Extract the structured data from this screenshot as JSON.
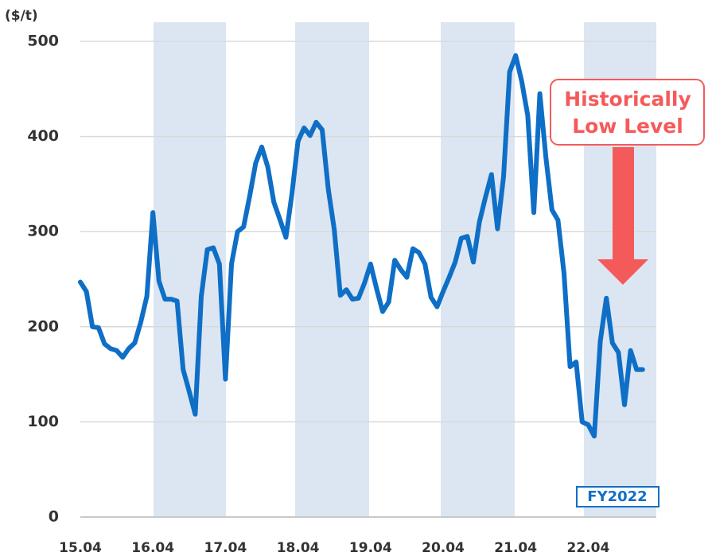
{
  "chart_data": {
    "type": "line",
    "y_label": "($/t)",
    "categories": [
      "15.04",
      null,
      null,
      null,
      null,
      null,
      null,
      null,
      null,
      null,
      null,
      null,
      "16.04",
      null,
      null,
      null,
      null,
      null,
      null,
      null,
      null,
      null,
      null,
      null,
      "17.04",
      null,
      null,
      null,
      null,
      null,
      null,
      null,
      null,
      null,
      null,
      null,
      "18.04",
      null,
      null,
      null,
      null,
      null,
      null,
      null,
      null,
      null,
      null,
      null,
      "19.04",
      null,
      null,
      null,
      null,
      null,
      null,
      null,
      null,
      null,
      null,
      null,
      "20.04",
      null,
      null,
      null,
      null,
      null,
      null,
      null,
      null,
      null,
      null,
      null,
      "21.04",
      null,
      null,
      null,
      null,
      null,
      null,
      null,
      null,
      null,
      null,
      null,
      "22.04",
      null,
      null,
      null,
      null,
      null,
      null,
      null,
      null,
      null
    ],
    "series": [
      {
        "name": "Price",
        "color": "#0f6fc6",
        "values": [
          247,
          237,
          200,
          199,
          182,
          177,
          175,
          168,
          177,
          183,
          205,
          232,
          320,
          248,
          229,
          229,
          227,
          155,
          132,
          108,
          232,
          281,
          283,
          266,
          145,
          266,
          300,
          305,
          337,
          372,
          389,
          368,
          331,
          313,
          294,
          340,
          395,
          409,
          401,
          415,
          407,
          345,
          302,
          233,
          239,
          229,
          230,
          246,
          266,
          240,
          216,
          226,
          270,
          260,
          252,
          282,
          278,
          266,
          231,
          221,
          237,
          252,
          268,
          293,
          295,
          268,
          310,
          336,
          360,
          303,
          358,
          468,
          485,
          458,
          422,
          320,
          445,
          378,
          323,
          312,
          256,
          158,
          163,
          100,
          97,
          85,
          185,
          230,
          183,
          173,
          118,
          175,
          155,
          155
        ]
      }
    ],
    "ylim": [
      0,
      500
    ],
    "yticks": [
      0,
      100,
      200,
      300,
      400,
      500
    ],
    "grid": true,
    "annotation": [
      "Historically",
      "Low Level"
    ],
    "band_label": "FY2022"
  }
}
